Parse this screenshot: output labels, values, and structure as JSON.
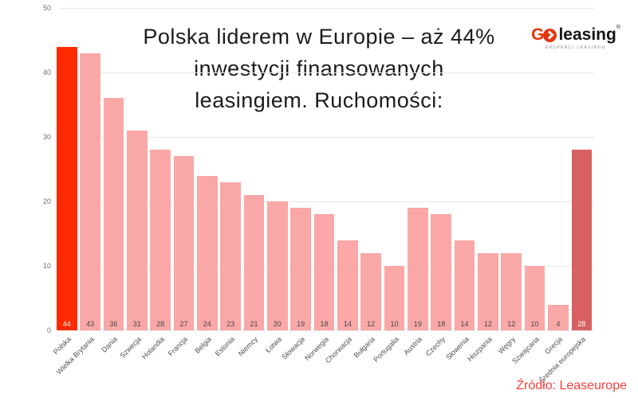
{
  "title": {
    "line1": "Polska liderem w Europie – aż 44%",
    "line2": "inwestycji finansowanych",
    "line3": "leasingiem. Ruchomości:"
  },
  "logo": {
    "g": "G",
    "word": "leasing",
    "registered": "®",
    "tagline": "EKSPERCI LEASINGU",
    "icon": "go-arrow-icon",
    "brand_color": "#E7330D"
  },
  "source": {
    "label": "Źródło: Leaseurope",
    "color": "#F4403D"
  },
  "chart_data": {
    "type": "bar",
    "title": "Polska liderem w Europie – aż 44% inwestycji finansowanych leasingiem. Ruchomości:",
    "categories": [
      "Polska",
      "Wielka Brytania",
      "Dania",
      "Szwecja",
      "Holandia",
      "Francja",
      "Belgia",
      "Estonia",
      "Niemcy",
      "Łotwa",
      "Słowacja",
      "Norwegia",
      "Chorwacja",
      "Bułgaria",
      "Portugalia",
      "Austria",
      "Czechy",
      "Słowenia",
      "Hiszpania",
      "Węgry",
      "Szwajcaria",
      "Grecja",
      "Średnia europejska"
    ],
    "values": [
      44,
      43,
      36,
      31,
      28,
      27,
      24,
      23,
      21,
      20,
      19,
      18,
      14,
      12,
      10,
      19,
      18,
      14,
      12,
      12,
      10,
      4,
      28
    ],
    "xlabel": "",
    "ylabel": "",
    "ylim": [
      0,
      50
    ],
    "yticks": [
      0,
      10,
      20,
      30,
      40,
      50
    ],
    "grid": true,
    "legend": false,
    "value_labels": "inside-bottom",
    "highlight": {
      "index": 0,
      "label": "Polska",
      "value": 44
    },
    "average_bar": {
      "index": 22,
      "label": "Średnia europejska",
      "value": 28
    },
    "colors": {
      "default": "#F9A7A7",
      "highlight": "#FE2B00",
      "average": "#D86060",
      "value_label": "#4A4A4A",
      "value_label_on_accent": "#FFFFFF",
      "grid": "#E8E8E8",
      "axis_text": "#6E6E6E",
      "category_text": "#4F4F4F"
    }
  }
}
